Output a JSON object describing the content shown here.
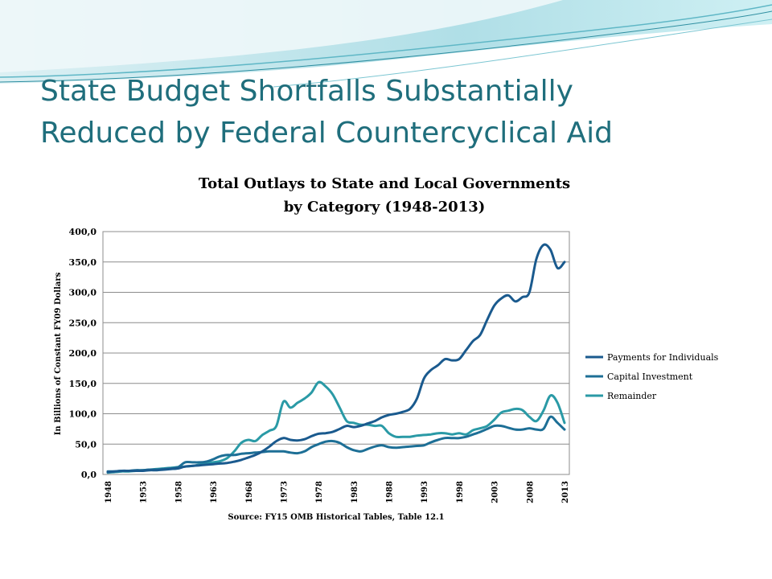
{
  "slide": {
    "title_line1": "State Budget Shortfalls Substantially",
    "title_line2": "Reduced by Federal Countercyclical Aid"
  },
  "colors": {
    "title": "#1f6e7c",
    "payments": "#1a5a8e",
    "capital": "#1d6f96",
    "remainder": "#2a9aa6",
    "gridline": "#8c8c8c"
  },
  "chart_data": {
    "type": "line",
    "title": "Total Outlays to State and Local Governments",
    "subtitle": "by Category (1948-2013)",
    "ylabel": "In Billions of Constant FY09 Dollars",
    "xlabel": "Source: FY15 OMB Historical Tables, Table 12.1",
    "ylim": [
      0,
      400
    ],
    "yticks": [
      "0,0",
      "50,0",
      "100,0",
      "150,0",
      "200,0",
      "250,0",
      "300,0",
      "350,0",
      "400,0"
    ],
    "ytick_values": [
      0,
      50,
      100,
      150,
      200,
      250,
      300,
      350,
      400
    ],
    "xticks": [
      "1948",
      "1953",
      "1958",
      "1963",
      "1968",
      "1973",
      "1978",
      "1983",
      "1988",
      "1993",
      "1998",
      "2003",
      "2008",
      "2013"
    ],
    "grid": true,
    "legend_position": "right",
    "x": [
      1948,
      1949,
      1950,
      1951,
      1952,
      1953,
      1954,
      1955,
      1956,
      1957,
      1958,
      1959,
      1960,
      1961,
      1962,
      1963,
      1964,
      1965,
      1966,
      1967,
      1968,
      1969,
      1970,
      1971,
      1972,
      1973,
      1974,
      1975,
      1976,
      1977,
      1978,
      1979,
      1980,
      1981,
      1982,
      1983,
      1984,
      1985,
      1986,
      1987,
      1988,
      1989,
      1990,
      1991,
      1992,
      1993,
      1994,
      1995,
      1996,
      1997,
      1998,
      1999,
      2000,
      2001,
      2002,
      2003,
      2004,
      2005,
      2006,
      2007,
      2008,
      2009,
      2010,
      2011,
      2012,
      2013
    ],
    "series": [
      {
        "name": "Payments for Individuals",
        "values": [
          4,
          5,
          6,
          6,
          6,
          6,
          7,
          7,
          8,
          9,
          10,
          13,
          14,
          15,
          16,
          17,
          18,
          19,
          21,
          24,
          28,
          32,
          38,
          46,
          55,
          60,
          57,
          56,
          58,
          63,
          67,
          68,
          70,
          75,
          80,
          78,
          80,
          84,
          88,
          94,
          98,
          100,
          103,
          108,
          125,
          158,
          172,
          180,
          190,
          188,
          190,
          205,
          220,
          230,
          255,
          278,
          290,
          295,
          285,
          292,
          300,
          355,
          378,
          370,
          340,
          350
        ]
      },
      {
        "name": "Capital Investment",
        "values": [
          5,
          5,
          6,
          6,
          7,
          7,
          8,
          8,
          9,
          10,
          12,
          20,
          20,
          20,
          21,
          25,
          30,
          32,
          32,
          34,
          35,
          36,
          37,
          38,
          38,
          38,
          36,
          35,
          38,
          45,
          50,
          54,
          55,
          52,
          45,
          40,
          38,
          42,
          46,
          48,
          45,
          44,
          45,
          46,
          47,
          48,
          53,
          57,
          60,
          60,
          60,
          62,
          66,
          70,
          75,
          80,
          80,
          77,
          74,
          74,
          76,
          74,
          75,
          95,
          85,
          74
        ]
      },
      {
        "name": "Remainder",
        "values": [
          3,
          4,
          5,
          5,
          6,
          7,
          8,
          9,
          10,
          11,
          12,
          13,
          14,
          16,
          18,
          20,
          22,
          27,
          38,
          52,
          57,
          55,
          65,
          72,
          80,
          120,
          110,
          118,
          125,
          135,
          152,
          145,
          132,
          110,
          88,
          85,
          82,
          82,
          80,
          80,
          68,
          62,
          62,
          62,
          64,
          65,
          66,
          68,
          68,
          66,
          68,
          66,
          73,
          76,
          80,
          90,
          102,
          105,
          108,
          106,
          95,
          88,
          105,
          130,
          118,
          85
        ]
      }
    ]
  }
}
